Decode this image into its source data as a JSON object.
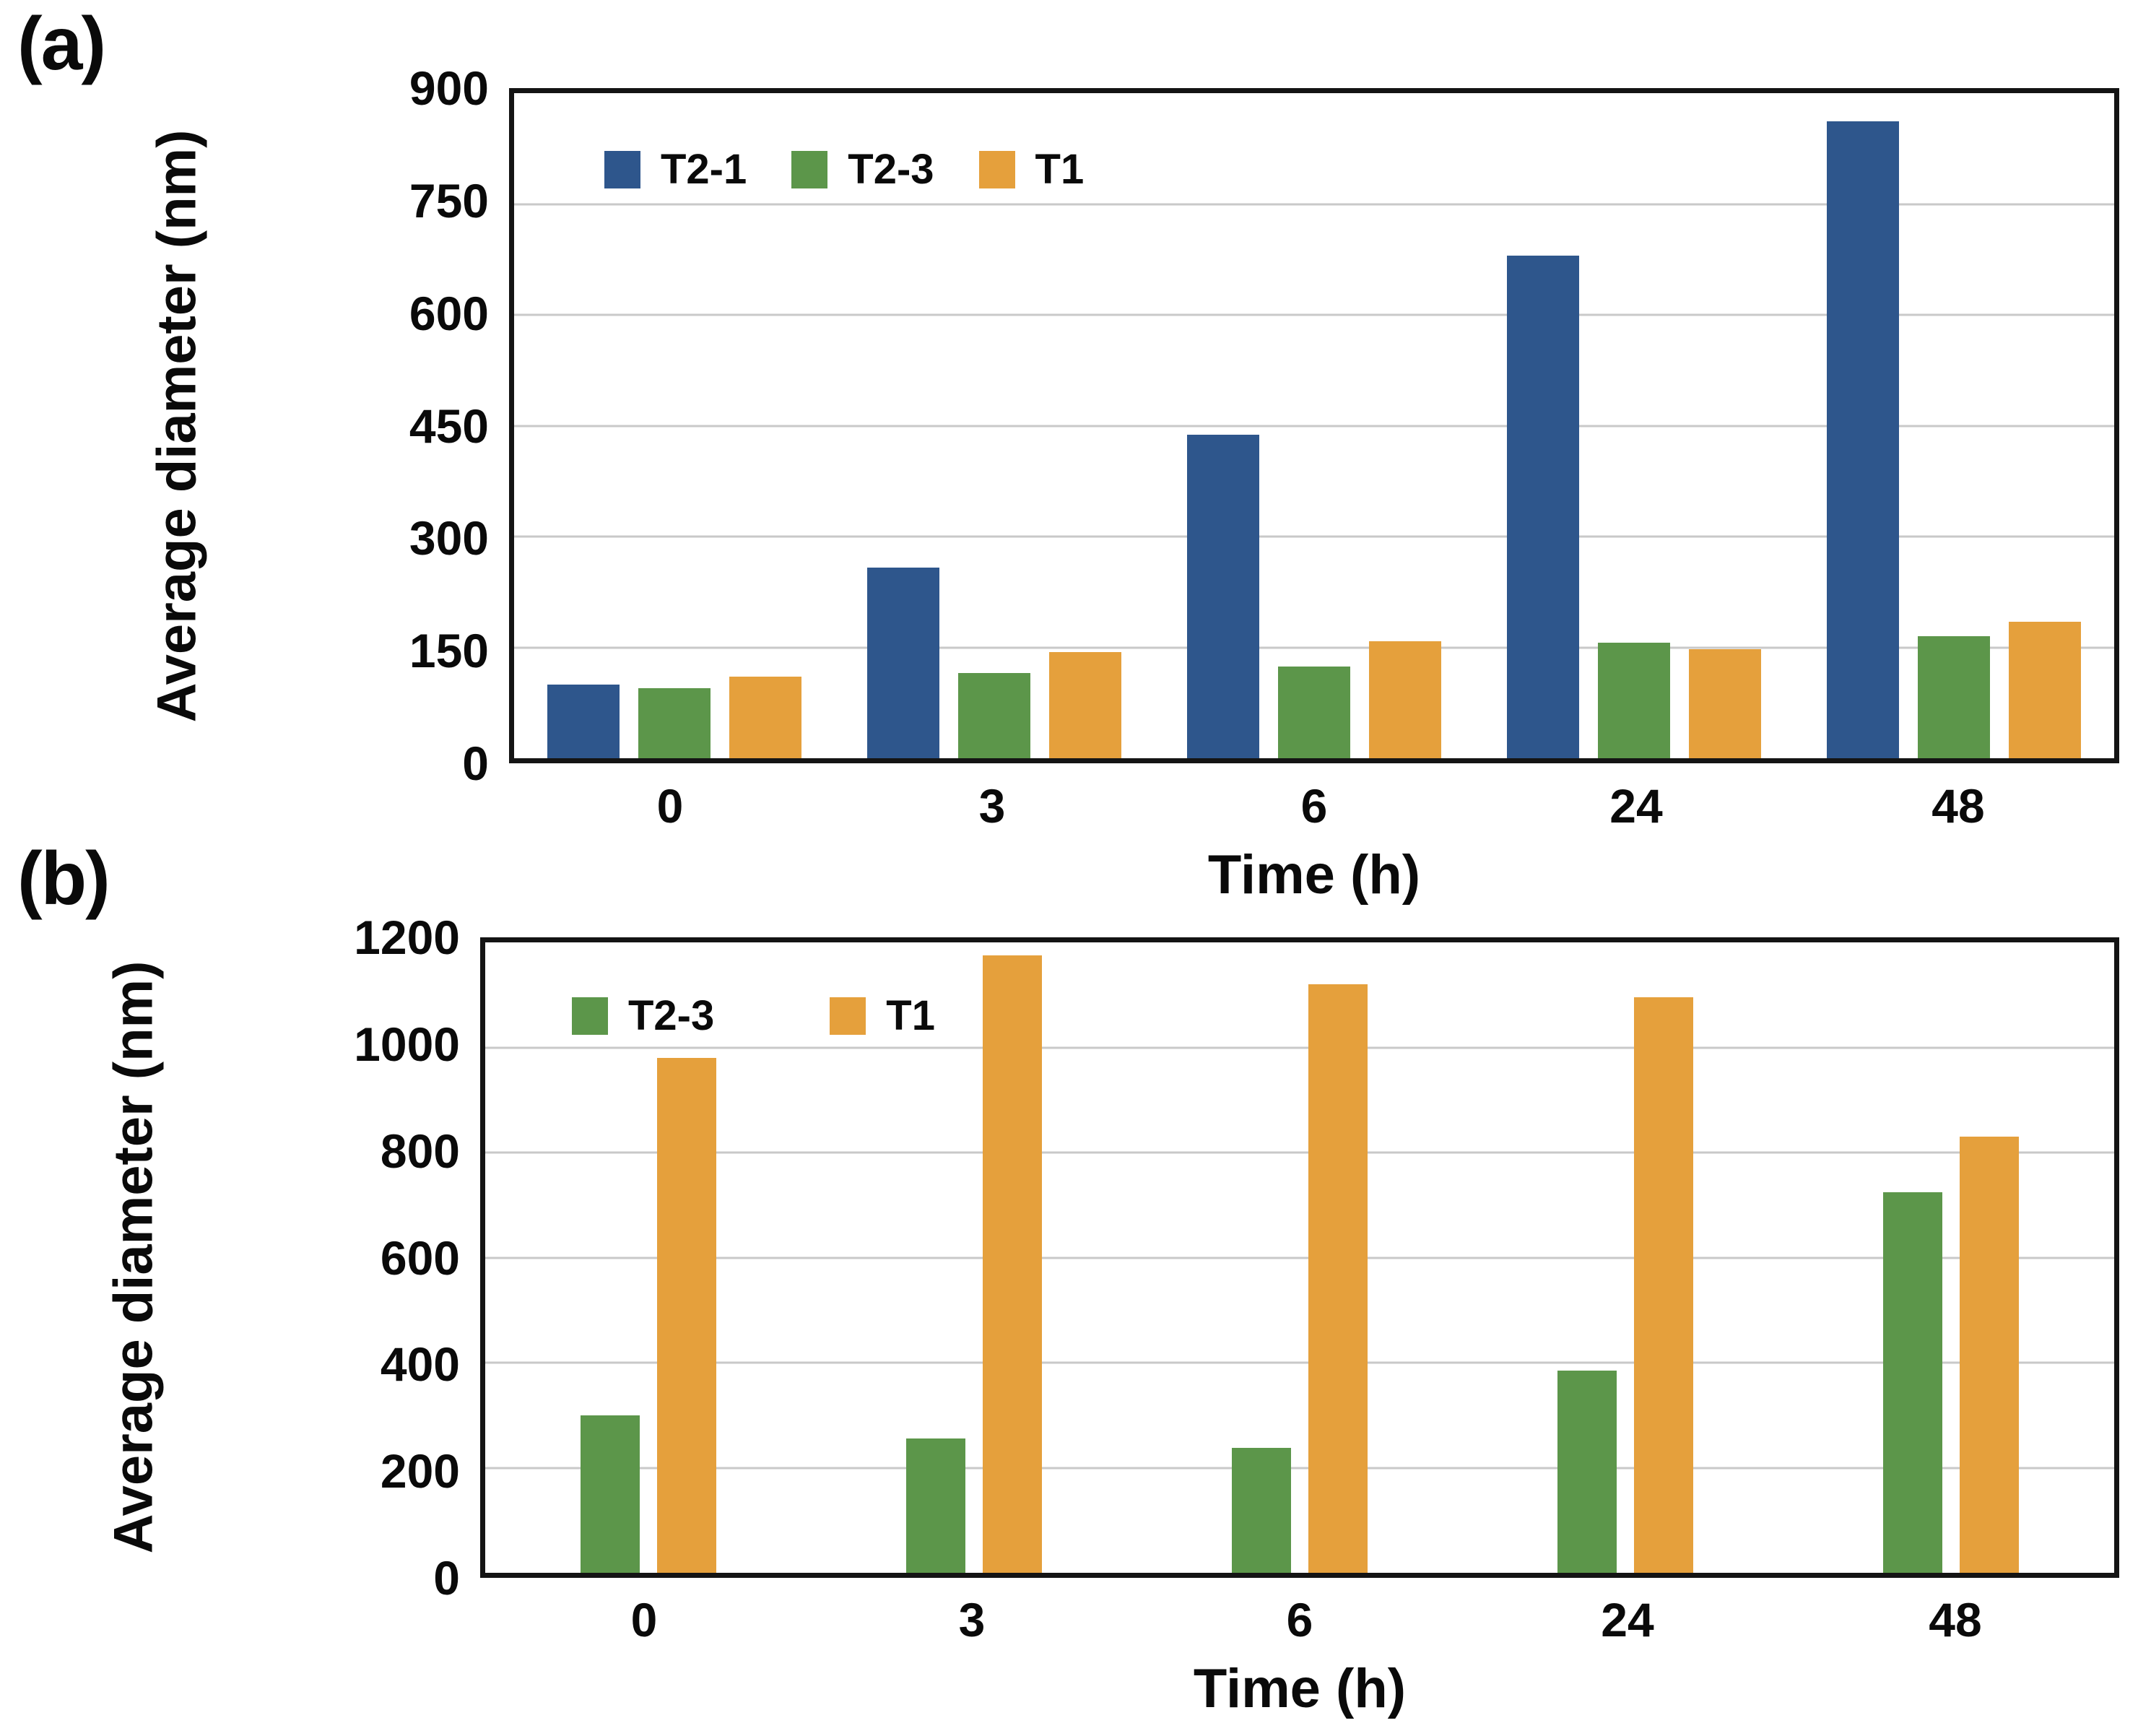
{
  "figure": {
    "background": "#ffffff",
    "plot_border_color": "#141414",
    "gridline_color": "#c9c9c9",
    "text_color": "#0a0a0a",
    "series_colors": {
      "T2-1": "#2E568C",
      "T2-3": "#5C964A",
      "T1": "#E5A03C"
    }
  },
  "panels": [
    {
      "label": "(a)",
      "y_label": "Average diameter (nm)",
      "x_label": "Time (h)"
    },
    {
      "label": "(b)",
      "y_label": "Average diameter (nm)",
      "x_label": "Time (h)"
    }
  ],
  "chart_data": [
    {
      "type": "bar",
      "title": "",
      "xlabel": "Time (h)",
      "ylabel": "Average diameter (nm)",
      "categories": [
        "0",
        "3",
        "6",
        "24",
        "48"
      ],
      "series": [
        {
          "name": "T2-1",
          "color": "#2E568C",
          "values": [
            100,
            258,
            438,
            680,
            862
          ]
        },
        {
          "name": "T2-3",
          "color": "#5C964A",
          "values": [
            95,
            115,
            124,
            156,
            165
          ]
        },
        {
          "name": "T1",
          "color": "#E5A03C",
          "values": [
            110,
            144,
            158,
            148,
            185
          ]
        }
      ],
      "ylim": [
        0,
        900
      ],
      "ytick_step": 150,
      "grid": true,
      "legend_position": "top-left-inside"
    },
    {
      "type": "bar",
      "title": "",
      "xlabel": "Time (h)",
      "ylabel": "Average diameter (nm)",
      "categories": [
        "0",
        "3",
        "6",
        "24",
        "48"
      ],
      "series": [
        {
          "name": "T2-3",
          "color": "#5C964A",
          "values": [
            300,
            256,
            238,
            385,
            725
          ]
        },
        {
          "name": "T1",
          "color": "#E5A03C",
          "values": [
            980,
            1175,
            1120,
            1095,
            830
          ]
        }
      ],
      "ylim": [
        0,
        1200
      ],
      "ytick_step": 200,
      "grid": true,
      "legend_position": "top-left-inside"
    }
  ]
}
